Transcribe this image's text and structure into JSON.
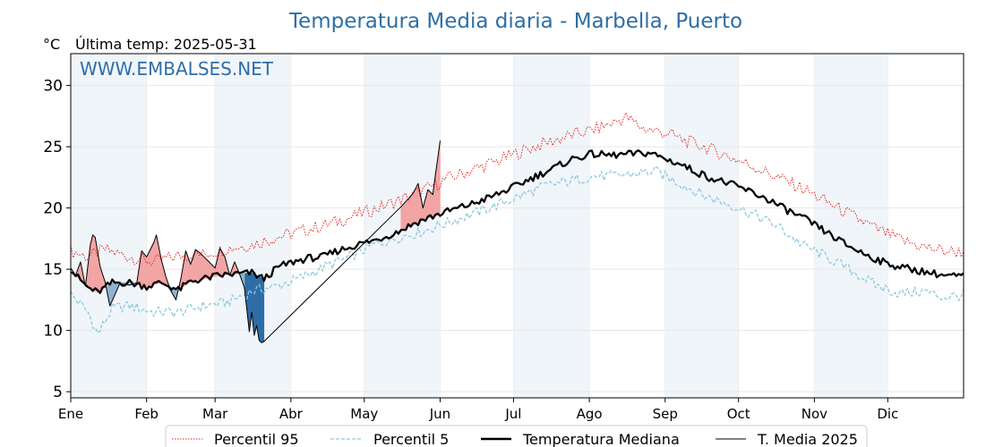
{
  "chart_data": {
    "type": "line",
    "title": "Temperatura Media diaria - Marbella, Puerto",
    "ylabel": "°C",
    "last_temp": "Última temp: 2025-05-31",
    "watermark": "WWW.EMBALSES.NET",
    "months": [
      "Ene",
      "Feb",
      "Mar",
      "Abr",
      "May",
      "Jun",
      "Jul",
      "Ago",
      "Sep",
      "Oct",
      "Nov",
      "Dic"
    ],
    "xlim": [
      1,
      366
    ],
    "ylim": [
      4.5,
      32.6
    ],
    "yticks": [
      5,
      10,
      15,
      20,
      25,
      30
    ],
    "grid": true,
    "legend_position": "bottom",
    "colors": {
      "p95": "#e8241f",
      "p5": "#8ec9dc",
      "median": "#000000",
      "current": "#000000",
      "above_fill": "#f2a5a5",
      "below_light": "#8fb3d3",
      "below_dark": "#2e6ea6",
      "band": "#dde9f5",
      "title": "#2e6ea6"
    },
    "series": [
      {
        "name": "Percentil 95",
        "style": "dotted",
        "points": [
          [
            1,
            16.5
          ],
          [
            8,
            16.0
          ],
          [
            15,
            16.6
          ],
          [
            25,
            16.0
          ],
          [
            35,
            15.6
          ],
          [
            45,
            16.1
          ],
          [
            55,
            16.2
          ],
          [
            65,
            16.7
          ],
          [
            75,
            17.0
          ],
          [
            85,
            17.6
          ],
          [
            95,
            18.1
          ],
          [
            105,
            18.6
          ],
          [
            115,
            19.2
          ],
          [
            125,
            19.9
          ],
          [
            135,
            20.6
          ],
          [
            145,
            21.4
          ],
          [
            155,
            22.4
          ],
          [
            165,
            23.1
          ],
          [
            175,
            23.8
          ],
          [
            185,
            24.6
          ],
          [
            195,
            25.3
          ],
          [
            205,
            25.9
          ],
          [
            215,
            26.4
          ],
          [
            222,
            26.9
          ],
          [
            228,
            27.4
          ],
          [
            235,
            26.5
          ],
          [
            245,
            26.1
          ],
          [
            252,
            25.5
          ],
          [
            260,
            25.0
          ],
          [
            270,
            24.2
          ],
          [
            280,
            23.4
          ],
          [
            290,
            22.5
          ],
          [
            300,
            21.6
          ],
          [
            310,
            20.5
          ],
          [
            320,
            19.4
          ],
          [
            330,
            18.3
          ],
          [
            340,
            17.4
          ],
          [
            350,
            16.8
          ],
          [
            358,
            16.5
          ],
          [
            366,
            16.4
          ]
        ]
      },
      {
        "name": "Percentil 5",
        "style": "dashed",
        "points": [
          [
            1,
            13.0
          ],
          [
            8,
            11.5
          ],
          [
            12,
            9.7
          ],
          [
            18,
            11.8
          ],
          [
            25,
            12.0
          ],
          [
            35,
            11.5
          ],
          [
            45,
            11.5
          ],
          [
            55,
            12.0
          ],
          [
            65,
            12.3
          ],
          [
            75,
            13.2
          ],
          [
            85,
            13.6
          ],
          [
            95,
            14.3
          ],
          [
            105,
            15.2
          ],
          [
            115,
            16.0
          ],
          [
            125,
            17.0
          ],
          [
            135,
            17.6
          ],
          [
            145,
            18.1
          ],
          [
            155,
            18.8
          ],
          [
            165,
            19.5
          ],
          [
            175,
            20.2
          ],
          [
            185,
            21.0
          ],
          [
            195,
            21.8
          ],
          [
            205,
            22.2
          ],
          [
            215,
            22.6
          ],
          [
            222,
            22.6
          ],
          [
            232,
            22.8
          ],
          [
            240,
            23.0
          ],
          [
            250,
            22.0
          ],
          [
            260,
            21.0
          ],
          [
            270,
            20.3
          ],
          [
            280,
            19.5
          ],
          [
            290,
            18.5
          ],
          [
            300,
            17.0
          ],
          [
            310,
            16.0
          ],
          [
            320,
            14.9
          ],
          [
            330,
            13.7
          ],
          [
            340,
            13.0
          ],
          [
            350,
            13.2
          ],
          [
            358,
            12.7
          ],
          [
            366,
            12.9
          ]
        ]
      },
      {
        "name": "Temperatura Mediana",
        "style": "solid-thick",
        "points": [
          [
            1,
            15.0
          ],
          [
            4,
            14.3
          ],
          [
            8,
            13.5
          ],
          [
            12,
            13.1
          ],
          [
            18,
            13.9
          ],
          [
            25,
            13.9
          ],
          [
            32,
            13.6
          ],
          [
            38,
            13.9
          ],
          [
            45,
            13.3
          ],
          [
            50,
            14.0
          ],
          [
            55,
            14.2
          ],
          [
            62,
            14.5
          ],
          [
            68,
            14.6
          ],
          [
            75,
            14.7
          ],
          [
            80,
            14.2
          ],
          [
            86,
            15.2
          ],
          [
            92,
            15.6
          ],
          [
            98,
            15.9
          ],
          [
            104,
            16.0
          ],
          [
            110,
            16.5
          ],
          [
            118,
            17.0
          ],
          [
            126,
            17.4
          ],
          [
            134,
            18.0
          ],
          [
            142,
            18.8
          ],
          [
            150,
            19.4
          ],
          [
            158,
            19.9
          ],
          [
            166,
            20.4
          ],
          [
            174,
            21.0
          ],
          [
            182,
            21.7
          ],
          [
            190,
            22.5
          ],
          [
            198,
            23.2
          ],
          [
            206,
            24.0
          ],
          [
            214,
            24.4
          ],
          [
            222,
            24.3
          ],
          [
            230,
            24.4
          ],
          [
            238,
            24.5
          ],
          [
            244,
            24.0
          ],
          [
            250,
            23.6
          ],
          [
            256,
            23.0
          ],
          [
            262,
            22.5
          ],
          [
            270,
            22.0
          ],
          [
            278,
            21.4
          ],
          [
            286,
            20.7
          ],
          [
            294,
            19.8
          ],
          [
            302,
            19.0
          ],
          [
            310,
            18.0
          ],
          [
            318,
            17.0
          ],
          [
            326,
            16.2
          ],
          [
            334,
            15.5
          ],
          [
            342,
            15.1
          ],
          [
            350,
            14.8
          ],
          [
            358,
            14.5
          ],
          [
            366,
            14.4
          ]
        ]
      },
      {
        "name": "T. Media 2025",
        "style": "solid",
        "points": [
          [
            1,
            15.1
          ],
          [
            3,
            14.5
          ],
          [
            5,
            15.6
          ],
          [
            7,
            13.6
          ],
          [
            9,
            17.0
          ],
          [
            10,
            17.8
          ],
          [
            11,
            17.6
          ],
          [
            13,
            15.2
          ],
          [
            15,
            14.0
          ],
          [
            17,
            12.0
          ],
          [
            19,
            12.9
          ],
          [
            21,
            13.8
          ],
          [
            25,
            13.7
          ],
          [
            28,
            13.9
          ],
          [
            30,
            16.5
          ],
          [
            32,
            16.0
          ],
          [
            35,
            17.2
          ],
          [
            36,
            17.8
          ],
          [
            38,
            15.8
          ],
          [
            40,
            14.3
          ],
          [
            42,
            13.2
          ],
          [
            44,
            12.5
          ],
          [
            46,
            14.2
          ],
          [
            48,
            16.5
          ],
          [
            50,
            15.4
          ],
          [
            52,
            16.6
          ],
          [
            54,
            16.3
          ],
          [
            57,
            15.7
          ],
          [
            60,
            15.1
          ],
          [
            62,
            16.7
          ],
          [
            64,
            16.0
          ],
          [
            66,
            14.5
          ],
          [
            68,
            15.6
          ],
          [
            70,
            14.6
          ],
          [
            72,
            13.5
          ],
          [
            74,
            9.9
          ],
          [
            75,
            11.5
          ],
          [
            76,
            9.6
          ],
          [
            77,
            10.4
          ],
          [
            78,
            9.2
          ],
          [
            79,
            9.0
          ],
          [
            80,
            9.1
          ],
          [
            136,
            20.1
          ],
          [
            141,
            21.2
          ],
          [
            143,
            22.0
          ],
          [
            145,
            20.0
          ],
          [
            147,
            21.5
          ],
          [
            149,
            21.1
          ],
          [
            150,
            22.6
          ],
          [
            151,
            24.0
          ],
          [
            152,
            25.5
          ]
        ]
      }
    ]
  }
}
